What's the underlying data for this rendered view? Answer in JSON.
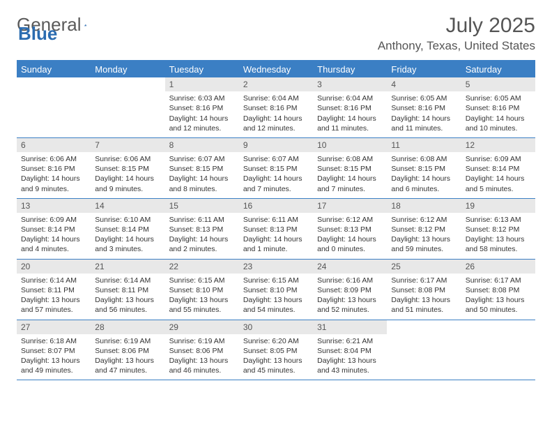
{
  "brand": {
    "part1": "General",
    "part2": "Blue"
  },
  "title": "July 2025",
  "location": "Anthony, Texas, United States",
  "colors": {
    "header_bg": "#3b7fc4",
    "header_text": "#ffffff",
    "daynum_bg": "#e8e8e8",
    "border": "#3b7fc4",
    "text": "#333333",
    "title_text": "#555555",
    "logo_gray": "#5a5a5a",
    "logo_blue": "#2b6cb0"
  },
  "day_names": [
    "Sunday",
    "Monday",
    "Tuesday",
    "Wednesday",
    "Thursday",
    "Friday",
    "Saturday"
  ],
  "weeks": [
    [
      {
        "num": "",
        "sunrise": "",
        "sunset": "",
        "daylight": ""
      },
      {
        "num": "",
        "sunrise": "",
        "sunset": "",
        "daylight": ""
      },
      {
        "num": "1",
        "sunrise": "Sunrise: 6:03 AM",
        "sunset": "Sunset: 8:16 PM",
        "daylight": "Daylight: 14 hours and 12 minutes."
      },
      {
        "num": "2",
        "sunrise": "Sunrise: 6:04 AM",
        "sunset": "Sunset: 8:16 PM",
        "daylight": "Daylight: 14 hours and 12 minutes."
      },
      {
        "num": "3",
        "sunrise": "Sunrise: 6:04 AM",
        "sunset": "Sunset: 8:16 PM",
        "daylight": "Daylight: 14 hours and 11 minutes."
      },
      {
        "num": "4",
        "sunrise": "Sunrise: 6:05 AM",
        "sunset": "Sunset: 8:16 PM",
        "daylight": "Daylight: 14 hours and 11 minutes."
      },
      {
        "num": "5",
        "sunrise": "Sunrise: 6:05 AM",
        "sunset": "Sunset: 8:16 PM",
        "daylight": "Daylight: 14 hours and 10 minutes."
      }
    ],
    [
      {
        "num": "6",
        "sunrise": "Sunrise: 6:06 AM",
        "sunset": "Sunset: 8:16 PM",
        "daylight": "Daylight: 14 hours and 9 minutes."
      },
      {
        "num": "7",
        "sunrise": "Sunrise: 6:06 AM",
        "sunset": "Sunset: 8:15 PM",
        "daylight": "Daylight: 14 hours and 9 minutes."
      },
      {
        "num": "8",
        "sunrise": "Sunrise: 6:07 AM",
        "sunset": "Sunset: 8:15 PM",
        "daylight": "Daylight: 14 hours and 8 minutes."
      },
      {
        "num": "9",
        "sunrise": "Sunrise: 6:07 AM",
        "sunset": "Sunset: 8:15 PM",
        "daylight": "Daylight: 14 hours and 7 minutes."
      },
      {
        "num": "10",
        "sunrise": "Sunrise: 6:08 AM",
        "sunset": "Sunset: 8:15 PM",
        "daylight": "Daylight: 14 hours and 7 minutes."
      },
      {
        "num": "11",
        "sunrise": "Sunrise: 6:08 AM",
        "sunset": "Sunset: 8:15 PM",
        "daylight": "Daylight: 14 hours and 6 minutes."
      },
      {
        "num": "12",
        "sunrise": "Sunrise: 6:09 AM",
        "sunset": "Sunset: 8:14 PM",
        "daylight": "Daylight: 14 hours and 5 minutes."
      }
    ],
    [
      {
        "num": "13",
        "sunrise": "Sunrise: 6:09 AM",
        "sunset": "Sunset: 8:14 PM",
        "daylight": "Daylight: 14 hours and 4 minutes."
      },
      {
        "num": "14",
        "sunrise": "Sunrise: 6:10 AM",
        "sunset": "Sunset: 8:14 PM",
        "daylight": "Daylight: 14 hours and 3 minutes."
      },
      {
        "num": "15",
        "sunrise": "Sunrise: 6:11 AM",
        "sunset": "Sunset: 8:13 PM",
        "daylight": "Daylight: 14 hours and 2 minutes."
      },
      {
        "num": "16",
        "sunrise": "Sunrise: 6:11 AM",
        "sunset": "Sunset: 8:13 PM",
        "daylight": "Daylight: 14 hours and 1 minute."
      },
      {
        "num": "17",
        "sunrise": "Sunrise: 6:12 AM",
        "sunset": "Sunset: 8:13 PM",
        "daylight": "Daylight: 14 hours and 0 minutes."
      },
      {
        "num": "18",
        "sunrise": "Sunrise: 6:12 AM",
        "sunset": "Sunset: 8:12 PM",
        "daylight": "Daylight: 13 hours and 59 minutes."
      },
      {
        "num": "19",
        "sunrise": "Sunrise: 6:13 AM",
        "sunset": "Sunset: 8:12 PM",
        "daylight": "Daylight: 13 hours and 58 minutes."
      }
    ],
    [
      {
        "num": "20",
        "sunrise": "Sunrise: 6:14 AM",
        "sunset": "Sunset: 8:11 PM",
        "daylight": "Daylight: 13 hours and 57 minutes."
      },
      {
        "num": "21",
        "sunrise": "Sunrise: 6:14 AM",
        "sunset": "Sunset: 8:11 PM",
        "daylight": "Daylight: 13 hours and 56 minutes."
      },
      {
        "num": "22",
        "sunrise": "Sunrise: 6:15 AM",
        "sunset": "Sunset: 8:10 PM",
        "daylight": "Daylight: 13 hours and 55 minutes."
      },
      {
        "num": "23",
        "sunrise": "Sunrise: 6:15 AM",
        "sunset": "Sunset: 8:10 PM",
        "daylight": "Daylight: 13 hours and 54 minutes."
      },
      {
        "num": "24",
        "sunrise": "Sunrise: 6:16 AM",
        "sunset": "Sunset: 8:09 PM",
        "daylight": "Daylight: 13 hours and 52 minutes."
      },
      {
        "num": "25",
        "sunrise": "Sunrise: 6:17 AM",
        "sunset": "Sunset: 8:08 PM",
        "daylight": "Daylight: 13 hours and 51 minutes."
      },
      {
        "num": "26",
        "sunrise": "Sunrise: 6:17 AM",
        "sunset": "Sunset: 8:08 PM",
        "daylight": "Daylight: 13 hours and 50 minutes."
      }
    ],
    [
      {
        "num": "27",
        "sunrise": "Sunrise: 6:18 AM",
        "sunset": "Sunset: 8:07 PM",
        "daylight": "Daylight: 13 hours and 49 minutes."
      },
      {
        "num": "28",
        "sunrise": "Sunrise: 6:19 AM",
        "sunset": "Sunset: 8:06 PM",
        "daylight": "Daylight: 13 hours and 47 minutes."
      },
      {
        "num": "29",
        "sunrise": "Sunrise: 6:19 AM",
        "sunset": "Sunset: 8:06 PM",
        "daylight": "Daylight: 13 hours and 46 minutes."
      },
      {
        "num": "30",
        "sunrise": "Sunrise: 6:20 AM",
        "sunset": "Sunset: 8:05 PM",
        "daylight": "Daylight: 13 hours and 45 minutes."
      },
      {
        "num": "31",
        "sunrise": "Sunrise: 6:21 AM",
        "sunset": "Sunset: 8:04 PM",
        "daylight": "Daylight: 13 hours and 43 minutes."
      },
      {
        "num": "",
        "sunrise": "",
        "sunset": "",
        "daylight": ""
      },
      {
        "num": "",
        "sunrise": "",
        "sunset": "",
        "daylight": ""
      }
    ]
  ]
}
